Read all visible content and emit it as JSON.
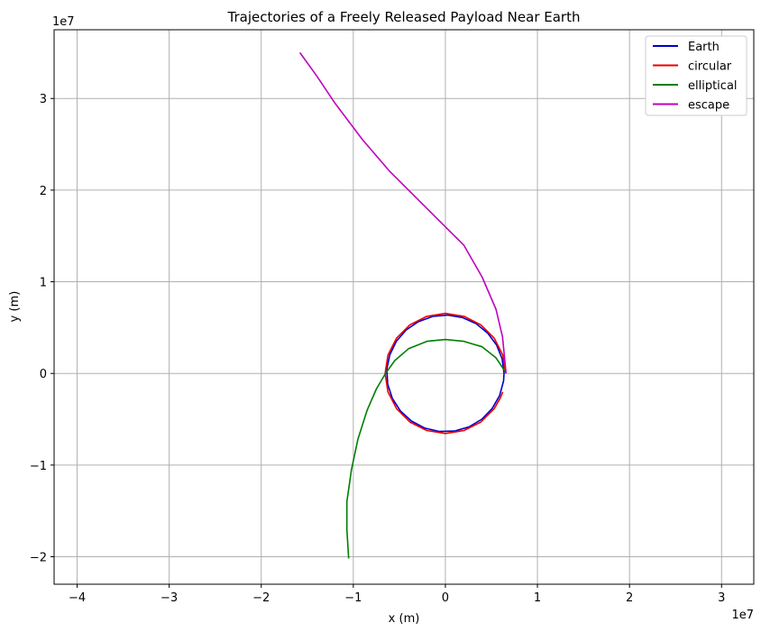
{
  "chart_data": {
    "type": "line",
    "title": "Trajectories of a Freely Released Payload Near Earth",
    "xlabel": "x (m)",
    "ylabel": "y (m)",
    "x_offset_label": "1e7",
    "y_offset_label": "1e7",
    "xlim": [
      -4.25,
      3.35
    ],
    "ylim": [
      -2.3,
      3.75
    ],
    "xticks": [
      -4,
      -3,
      -2,
      -1,
      0,
      1,
      2,
      3
    ],
    "yticks": [
      -2,
      -1,
      0,
      1,
      2,
      3
    ],
    "xtick_labels": [
      "−4",
      "−3",
      "−2",
      "−1",
      "0",
      "1",
      "2",
      "3"
    ],
    "ytick_labels": [
      "−2",
      "−1",
      "0",
      "1",
      "2",
      "3"
    ],
    "grid": true,
    "legend_position": "top-right",
    "series": [
      {
        "name": "Earth",
        "color": "#0000cc",
        "points": [
          [
            0.637,
            0
          ],
          [
            0.617,
            0.159
          ],
          [
            0.557,
            0.309
          ],
          [
            0.461,
            0.439
          ],
          [
            0.334,
            0.543
          ],
          [
            0.184,
            0.61
          ],
          [
            0.024,
            0.637
          ],
          [
            -0.138,
            0.622
          ],
          [
            -0.292,
            0.566
          ],
          [
            -0.425,
            0.475
          ],
          [
            -0.532,
            0.351
          ],
          [
            -0.604,
            0.203
          ],
          [
            -0.636,
            0.045
          ],
          [
            -0.626,
            -0.118
          ],
          [
            -0.576,
            -0.272
          ],
          [
            -0.488,
            -0.409
          ],
          [
            -0.369,
            -0.519
          ],
          [
            -0.222,
            -0.597
          ],
          [
            -0.063,
            -0.634
          ],
          [
            0.1,
            -0.629
          ],
          [
            0.256,
            -0.583
          ],
          [
            0.395,
            -0.5
          ],
          [
            0.508,
            -0.384
          ],
          [
            0.589,
            -0.242
          ],
          [
            0.632,
            -0.082
          ],
          [
            0.637,
            0
          ]
        ]
      },
      {
        "name": "circular",
        "color": "#ee0000",
        "points": [
          [
            0.655,
            0
          ],
          [
            0.623,
            0.202
          ],
          [
            0.53,
            0.385
          ],
          [
            0.385,
            0.53
          ],
          [
            0.202,
            0.623
          ],
          [
            0,
            0.655
          ],
          [
            -0.202,
            0.623
          ],
          [
            -0.385,
            0.53
          ],
          [
            -0.53,
            0.385
          ],
          [
            -0.623,
            0.202
          ],
          [
            -0.655,
            0
          ],
          [
            -0.623,
            -0.202
          ],
          [
            -0.53,
            -0.385
          ],
          [
            -0.385,
            -0.53
          ],
          [
            -0.202,
            -0.623
          ],
          [
            0,
            -0.655
          ],
          [
            0.202,
            -0.623
          ],
          [
            0.385,
            -0.53
          ],
          [
            0.53,
            -0.385
          ],
          [
            0.6,
            -0.262
          ],
          [
            0.623,
            -0.202
          ]
        ]
      },
      {
        "name": "elliptical",
        "color": "#007f00",
        "points": [
          [
            0.65,
            0.02
          ],
          [
            0.55,
            0.17
          ],
          [
            0.4,
            0.29
          ],
          [
            0.2,
            0.35
          ],
          [
            0.0,
            0.37
          ],
          [
            -0.2,
            0.35
          ],
          [
            -0.4,
            0.27
          ],
          [
            -0.55,
            0.14
          ],
          [
            -0.65,
            0.0
          ],
          [
            -0.75,
            -0.17
          ],
          [
            -0.85,
            -0.4
          ],
          [
            -0.95,
            -0.72
          ],
          [
            -1.02,
            -1.05
          ],
          [
            -1.07,
            -1.4
          ],
          [
            -1.07,
            -1.7
          ],
          [
            -1.05,
            -2.02
          ]
        ]
      },
      {
        "name": "escape",
        "color": "#bf00bf",
        "points": [
          [
            0.66,
            0
          ],
          [
            0.62,
            0.4
          ],
          [
            0.55,
            0.7
          ],
          [
            0.4,
            1.05
          ],
          [
            0.2,
            1.4
          ],
          [
            0.0,
            1.6
          ],
          [
            -0.3,
            1.9
          ],
          [
            -0.6,
            2.2
          ],
          [
            -0.9,
            2.55
          ],
          [
            -1.2,
            2.95
          ],
          [
            -1.4,
            3.25
          ],
          [
            -1.58,
            3.5
          ]
        ]
      }
    ]
  }
}
